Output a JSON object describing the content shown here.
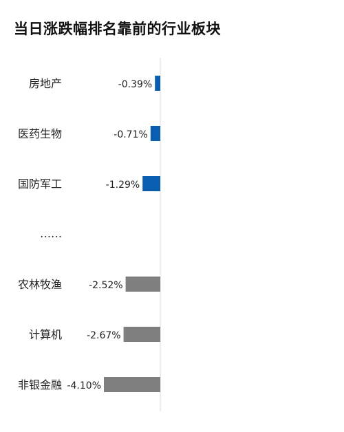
{
  "title": "当日涨跌幅排名靠前的行业板块",
  "chart_data": {
    "type": "bar",
    "orientation": "horizontal",
    "title": "当日涨跌幅排名靠前的行业板块",
    "categories": [
      "房地产",
      "医药生物",
      "国防军工",
      "……",
      "农林牧渔",
      "计算机",
      "非银金融"
    ],
    "series": [
      {
        "values": [
          -0.39,
          -0.71,
          -1.29,
          null,
          -2.52,
          -2.67,
          -4.1
        ],
        "value_labels": [
          "-0.39%",
          "-0.71%",
          "-1.29%",
          "",
          "-2.52%",
          "-2.67%",
          "-4.10%"
        ]
      }
    ],
    "bar_colors": [
      "#0a5eb0",
      "#0a5eb0",
      "#0a5eb0",
      null,
      "#7f7f7f",
      "#7f7f7f",
      "#7f7f7f"
    ],
    "grid": false,
    "axis_line_color": "#d9d9d9"
  }
}
